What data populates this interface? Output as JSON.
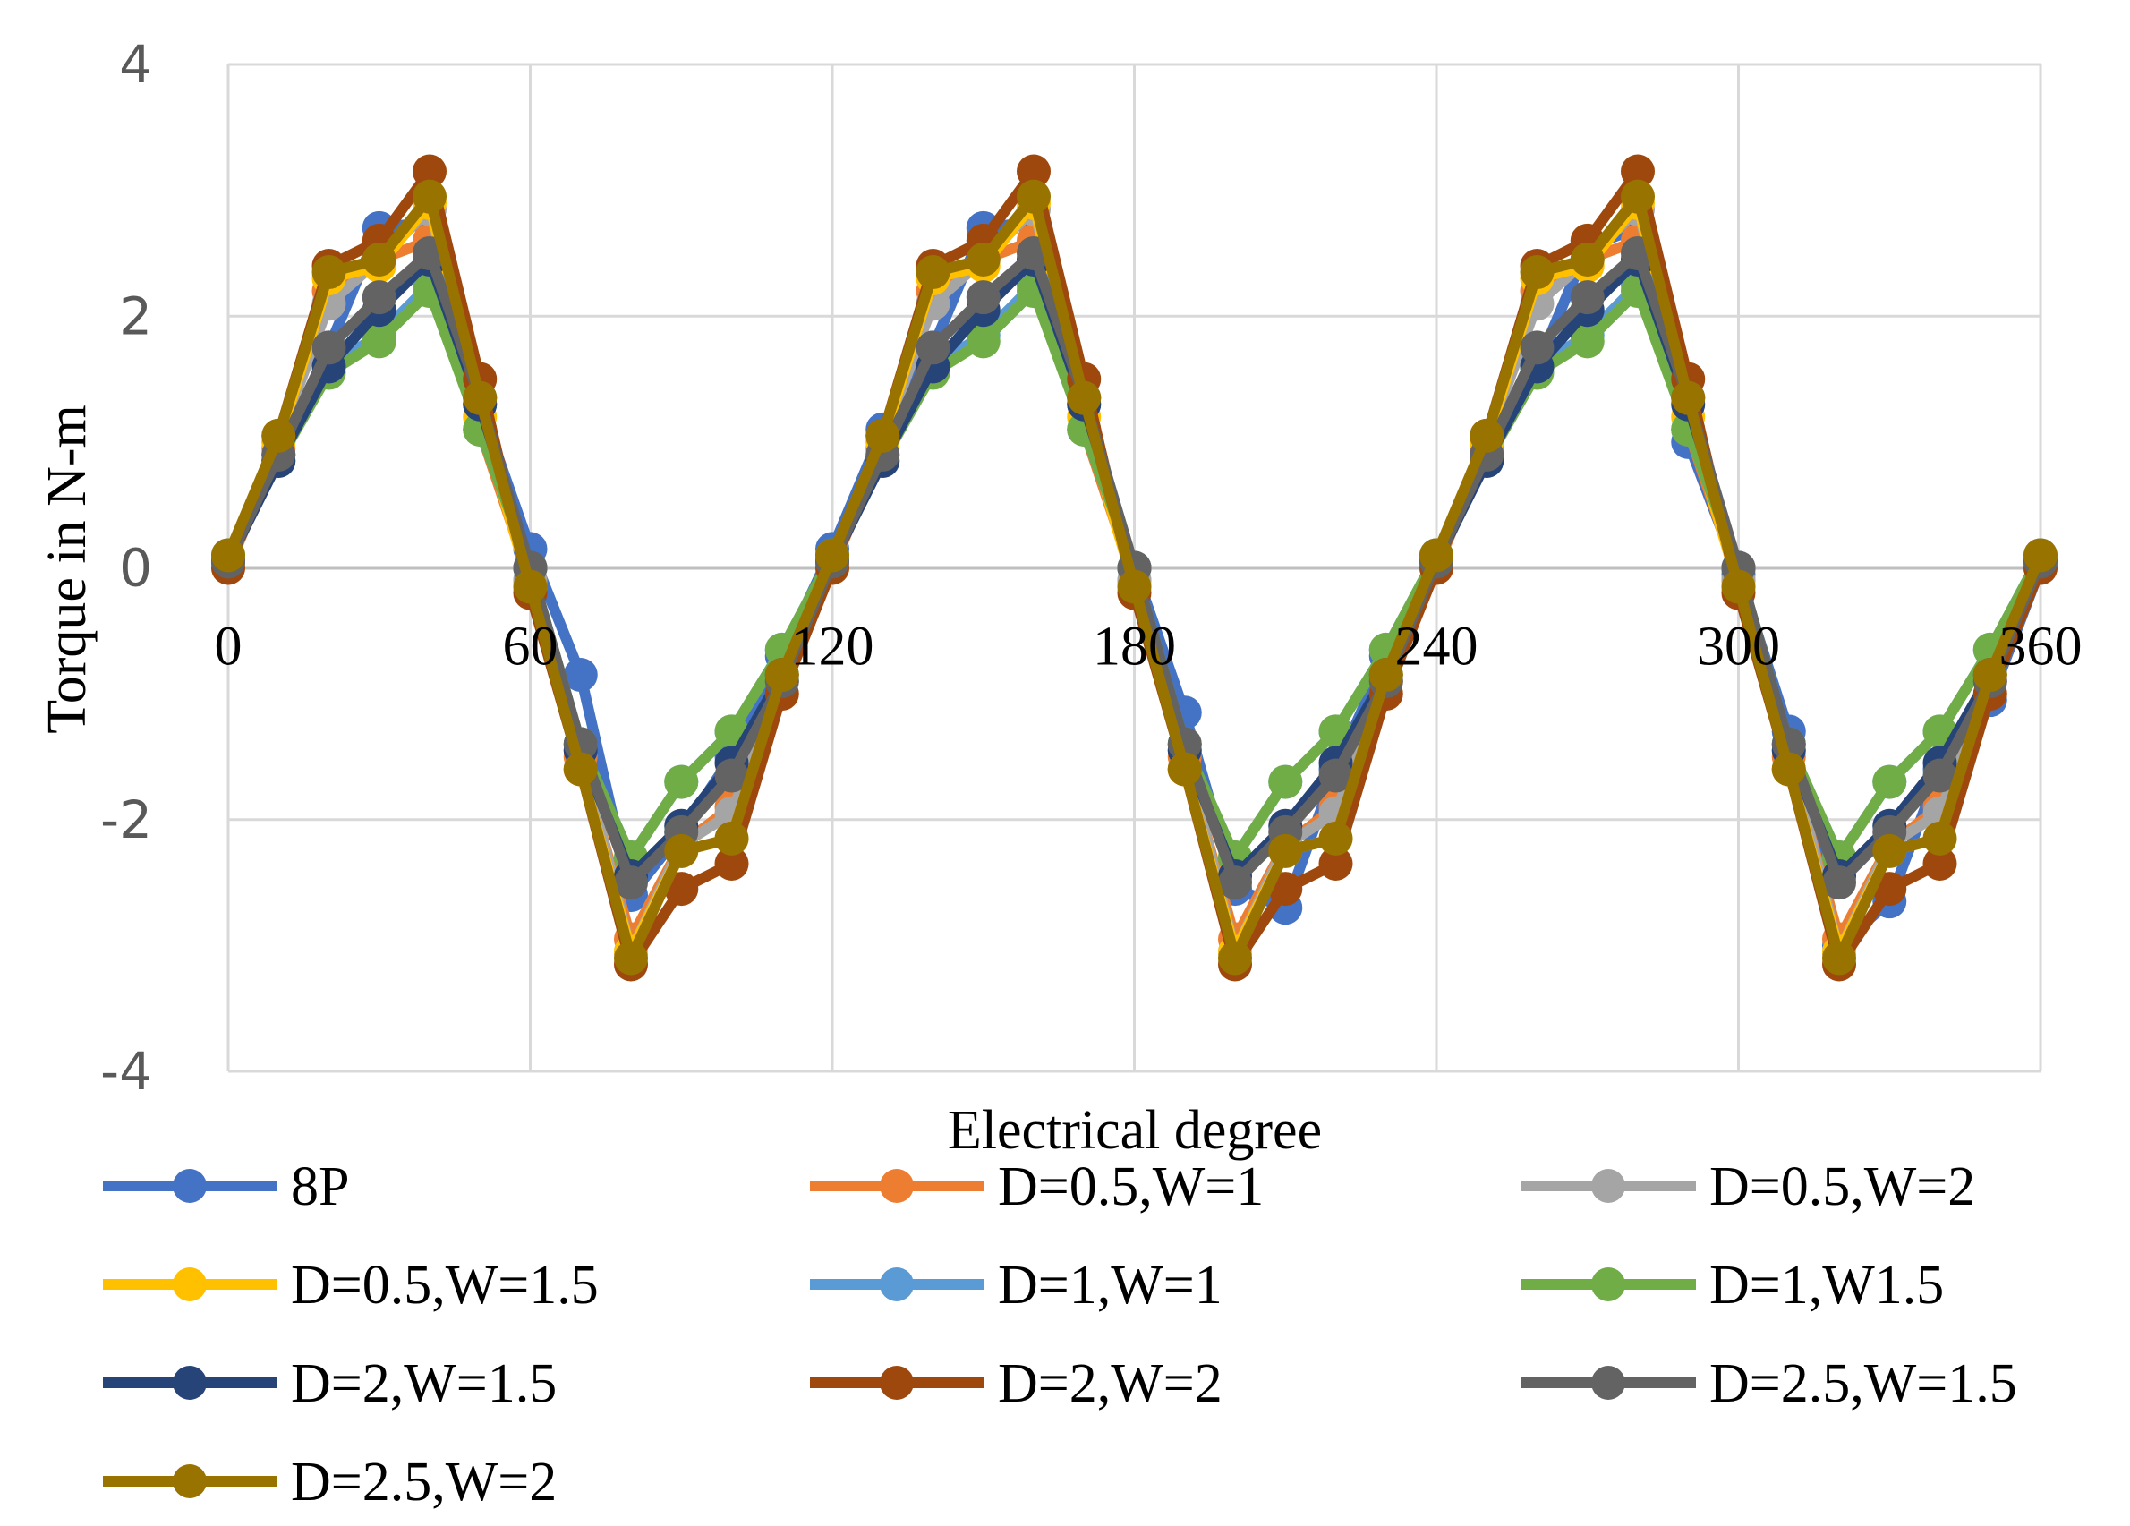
{
  "chart_data": {
    "type": "line",
    "xlabel": "Electrical degree",
    "ylabel": "Torque in N-m",
    "xlim": [
      0,
      360
    ],
    "ylim": [
      -4,
      4
    ],
    "x_ticks": [
      0,
      60,
      120,
      180,
      240,
      300,
      360
    ],
    "y_ticks": [
      -4,
      -2,
      0,
      2,
      4
    ],
    "grid": true,
    "legend_position": "bottom",
    "x": [
      0,
      10,
      20,
      30,
      40,
      50,
      60,
      70,
      80,
      90,
      100,
      110,
      120,
      130,
      140,
      150,
      160,
      170,
      180,
      190,
      200,
      210,
      220,
      230,
      240,
      250,
      260,
      270,
      280,
      290,
      300,
      310,
      320,
      330,
      340,
      350,
      360
    ],
    "series": [
      {
        "name": "8P",
        "color": "#4472C4",
        "values": [
          0.05,
          0.9,
          1.75,
          2.7,
          2.75,
          1.3,
          0.15,
          -0.85,
          -2.6,
          -2.1,
          -1.5,
          -0.7,
          0.15,
          1.1,
          1.75,
          2.7,
          2.75,
          1.3,
          0.0,
          -1.15,
          -2.55,
          -2.7,
          -1.6,
          -0.7,
          0.1,
          1.0,
          1.6,
          2.55,
          2.7,
          1.0,
          -0.05,
          -1.3,
          -3.0,
          -2.65,
          -1.6,
          -1.05,
          0.0
        ]
      },
      {
        "name": "D=0.5,W=1",
        "color": "#ED7D31",
        "values": [
          0.0,
          0.95,
          2.2,
          2.45,
          2.6,
          1.1,
          -0.1,
          -1.5,
          -2.95,
          -2.2,
          -1.9,
          -0.9,
          0.0,
          0.95,
          2.2,
          2.45,
          2.6,
          1.1,
          -0.1,
          -1.5,
          -2.95,
          -2.2,
          -1.9,
          -0.9,
          0.0,
          0.95,
          2.2,
          2.45,
          2.6,
          1.1,
          -0.1,
          -1.5,
          -2.95,
          -2.2,
          -1.9,
          -0.9,
          0.0
        ]
      },
      {
        "name": "D=0.5,W=2",
        "color": "#A5A5A5",
        "values": [
          0.05,
          1.0,
          2.1,
          2.45,
          2.85,
          1.35,
          -0.1,
          -1.45,
          -3.05,
          -2.2,
          -1.95,
          -0.9,
          0.05,
          1.0,
          2.1,
          2.45,
          2.85,
          1.35,
          -0.1,
          -1.45,
          -3.05,
          -2.2,
          -1.95,
          -0.9,
          0.05,
          1.0,
          2.1,
          2.45,
          2.85,
          1.35,
          -0.1,
          -1.45,
          -3.05,
          -2.2,
          -1.95,
          -0.9,
          0.05
        ]
      },
      {
        "name": "D=0.5,W=1.5",
        "color": "#FFC000",
        "values": [
          0.05,
          1.0,
          2.3,
          2.4,
          2.9,
          1.2,
          -0.15,
          -1.6,
          -3.05,
          -2.25,
          -2.15,
          -0.85,
          0.05,
          1.0,
          2.3,
          2.4,
          2.9,
          1.2,
          -0.15,
          -1.6,
          -3.05,
          -2.25,
          -2.15,
          -0.85,
          0.05,
          1.0,
          2.3,
          2.4,
          2.9,
          1.2,
          -0.15,
          -1.6,
          -3.05,
          -2.25,
          -2.15,
          -0.85,
          0.05
        ]
      },
      {
        "name": "D=1,W=1",
        "color": "#5B9BD5",
        "values": [
          0.1,
          0.9,
          1.6,
          1.85,
          2.25,
          1.1,
          0.0,
          -1.4,
          -2.3,
          -1.7,
          -1.3,
          -0.65,
          0.1,
          0.9,
          1.6,
          1.85,
          2.25,
          1.1,
          0.0,
          -1.4,
          -2.3,
          -1.7,
          -1.3,
          -0.65,
          0.1,
          0.9,
          1.6,
          1.85,
          2.25,
          1.1,
          0.0,
          -1.4,
          -2.3,
          -1.7,
          -1.3,
          -0.65,
          0.1
        ]
      },
      {
        "name": "D=1,W1.5",
        "color": "#70AD47",
        "values": [
          0.1,
          0.85,
          1.55,
          1.8,
          2.2,
          1.1,
          0.0,
          -1.4,
          -2.3,
          -1.7,
          -1.3,
          -0.65,
          0.1,
          0.85,
          1.55,
          1.8,
          2.2,
          1.1,
          0.0,
          -1.4,
          -2.3,
          -1.7,
          -1.3,
          -0.65,
          0.1,
          0.85,
          1.55,
          1.8,
          2.2,
          1.1,
          0.0,
          -1.4,
          -2.3,
          -1.7,
          -1.3,
          -0.65,
          0.1
        ]
      },
      {
        "name": "D=2,W=1.5",
        "color": "#264478",
        "values": [
          0.05,
          0.85,
          1.6,
          2.05,
          2.45,
          1.3,
          0.0,
          -1.45,
          -2.45,
          -2.05,
          -1.55,
          -0.85,
          0.05,
          0.85,
          1.6,
          2.05,
          2.45,
          1.3,
          0.0,
          -1.45,
          -2.45,
          -2.05,
          -1.55,
          -0.85,
          0.05,
          0.85,
          1.6,
          2.05,
          2.45,
          1.3,
          0.0,
          -1.45,
          -2.45,
          -2.05,
          -1.55,
          -0.85,
          0.05
        ]
      },
      {
        "name": "D=2,W=2",
        "color": "#9E480E",
        "values": [
          0.0,
          1.05,
          2.4,
          2.6,
          3.15,
          1.5,
          -0.2,
          -1.6,
          -3.15,
          -2.55,
          -2.35,
          -1.0,
          0.0,
          1.05,
          2.4,
          2.6,
          3.15,
          1.5,
          -0.2,
          -1.6,
          -3.15,
          -2.55,
          -2.35,
          -1.0,
          0.0,
          1.05,
          2.4,
          2.6,
          3.15,
          1.5,
          -0.2,
          -1.6,
          -3.15,
          -2.55,
          -2.35,
          -1.0,
          0.0
        ]
      },
      {
        "name": "D=2.5,W=1.5",
        "color": "#636363",
        "values": [
          0.05,
          0.9,
          1.75,
          2.15,
          2.5,
          1.35,
          0.0,
          -1.4,
          -2.5,
          -2.1,
          -1.65,
          -0.9,
          0.05,
          0.9,
          1.75,
          2.15,
          2.5,
          1.35,
          0.0,
          -1.4,
          -2.5,
          -2.1,
          -1.65,
          -0.9,
          0.05,
          0.9,
          1.75,
          2.15,
          2.5,
          1.35,
          0.0,
          -1.4,
          -2.5,
          -2.1,
          -1.65,
          -0.9,
          0.05
        ]
      },
      {
        "name": "D=2.5,W=2",
        "color": "#997300",
        "values": [
          0.1,
          1.05,
          2.35,
          2.45,
          2.95,
          1.35,
          -0.15,
          -1.6,
          -3.1,
          -2.25,
          -2.15,
          -0.85,
          0.1,
          1.05,
          2.35,
          2.45,
          2.95,
          1.35,
          -0.15,
          -1.6,
          -3.1,
          -2.25,
          -2.15,
          -0.85,
          0.1,
          1.05,
          2.35,
          2.45,
          2.95,
          1.35,
          -0.15,
          -1.6,
          -3.1,
          -2.25,
          -2.15,
          -0.85,
          0.1
        ]
      }
    ]
  }
}
